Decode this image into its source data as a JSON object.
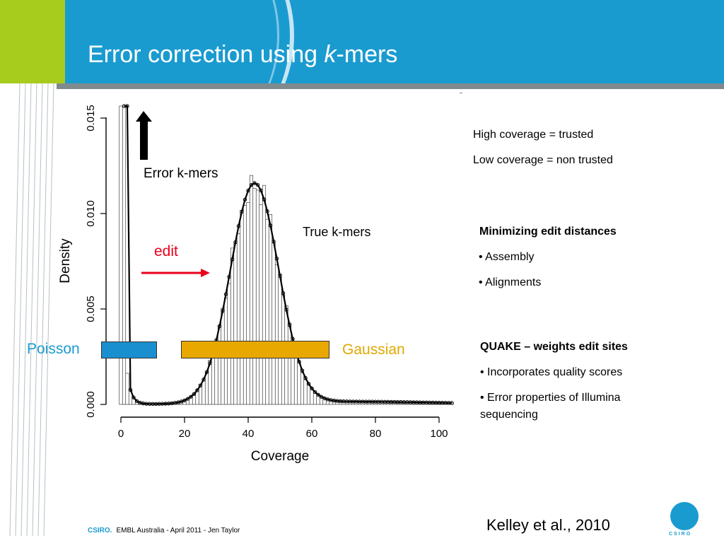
{
  "slide": {
    "title_main": "Error correction using ",
    "title_italic": "k",
    "title_end": "-mers"
  },
  "plot": {
    "ylabel": "Density",
    "xlabel": "Coverage",
    "yticks": [
      "0.000",
      "0.005",
      "0.010",
      "0.015"
    ],
    "xticks": [
      "0",
      "20",
      "40",
      "60",
      "80",
      "100"
    ],
    "error_label": "Error k-mers",
    "true_label": "True k-mers"
  },
  "annotations": {
    "edit": "edit",
    "poisson": "Poisson",
    "gaussian": "Gaussian"
  },
  "right_panel": {
    "line1": "High coverage = trusted",
    "line2": "Low coverage = non trusted",
    "section1_title": "Minimizing edit distances",
    "section1_items": [
      "• Assembly",
      "• Alignments"
    ],
    "section2_title": "QUAKE – weights edit sites",
    "section2_items": [
      "• Incorporates quality scores",
      "• Error properties of Illumina",
      "sequencing"
    ]
  },
  "citation": "Kelley et al., 2010",
  "footer": {
    "brand": "CSIRO.",
    "text": "EMBL Australia - April 2011 - Jen Taylor"
  },
  "logo_text": "CSIRO",
  "colors": {
    "header_blue": "#1a9bd0",
    "header_lime": "#a8cc1e",
    "poisson_blue": "#1a8fd0",
    "gaussian_orange": "#e8a800",
    "edit_red": "#e8001c"
  }
}
